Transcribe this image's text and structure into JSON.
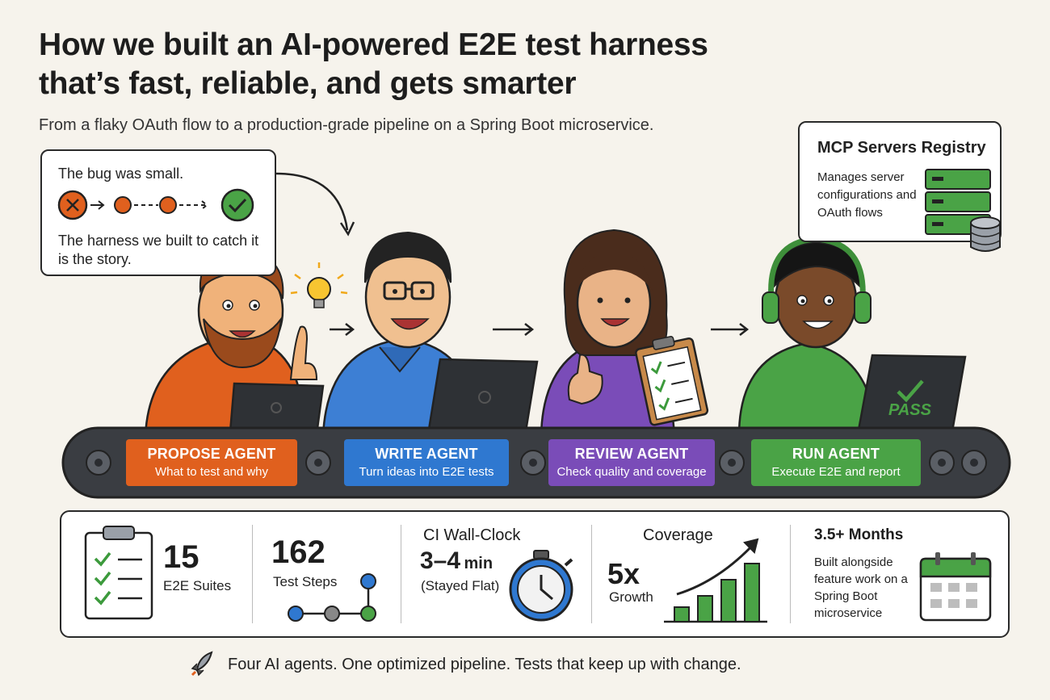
{
  "title_line1": "How we built an AI-powered E2E test harness",
  "title_line2": "that’s fast, reliable, and gets smarter",
  "subtitle": "From a flaky OAuth flow to a production-grade pipeline on a Spring Boot microservice.",
  "callout": {
    "line1": "The bug was small.",
    "line2": "The harness we built to catch it is the story."
  },
  "registry": {
    "title": "MCP Servers Registry",
    "description": "Manages server configurations and OAuth flows"
  },
  "screen_text": "PASS",
  "agents": [
    {
      "name": "PROPOSE AGENT",
      "desc": "What to test and why",
      "color": "#e0601e"
    },
    {
      "name": "WRITE AGENT",
      "desc": "Turn ideas into E2E tests",
      "color": "#2f78d0"
    },
    {
      "name": "REVIEW AGENT",
      "desc": "Check quality and coverage",
      "color": "#7a4cb8"
    },
    {
      "name": "RUN AGENT",
      "desc": "Execute E2E and report",
      "color": "#4aa346"
    }
  ],
  "stats": {
    "suites": {
      "value": "15",
      "label": "E2E Suites"
    },
    "steps": {
      "value": "162",
      "label": "Test Steps"
    },
    "ci": {
      "header": "CI Wall-Clock",
      "value": "3–4",
      "unit": "min",
      "note": "(Stayed Flat)"
    },
    "coverage": {
      "header": "Coverage",
      "value": "5x",
      "label": "Growth"
    },
    "months": {
      "header": "3.5+ Months",
      "description": "Built alongside feature work on a Spring Boot microservice"
    }
  },
  "footer": "Four AI agents. One optimized pipeline. Tests that keep up with change.",
  "colors": {
    "orange": "#e0601e",
    "blue": "#2f78d0",
    "purple": "#7a4cb8",
    "green": "#4aa346"
  }
}
